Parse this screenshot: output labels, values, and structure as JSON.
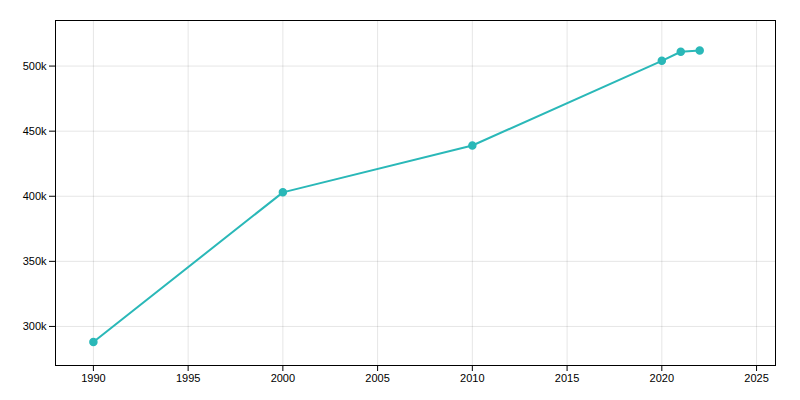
{
  "chart_data": {
    "type": "line",
    "x": [
      1990,
      2000,
      2010,
      2020,
      2021,
      2022
    ],
    "values": [
      288091,
      403000,
      439000,
      504000,
      511000,
      512000
    ],
    "color": "#2ab8b8",
    "marker": "circle",
    "xlim": [
      1988,
      2026
    ],
    "ylim": [
      270000,
      535000
    ],
    "xticks": [
      1990,
      1995,
      2000,
      2005,
      2010,
      2015,
      2020,
      2025
    ],
    "yticks": [
      {
        "value": 300000,
        "label": "300k"
      },
      {
        "value": 350000,
        "label": "350k"
      },
      {
        "value": 400000,
        "label": "400k"
      },
      {
        "value": 450000,
        "label": "450k"
      },
      {
        "value": 500000,
        "label": "500k"
      }
    ],
    "grid": true
  }
}
